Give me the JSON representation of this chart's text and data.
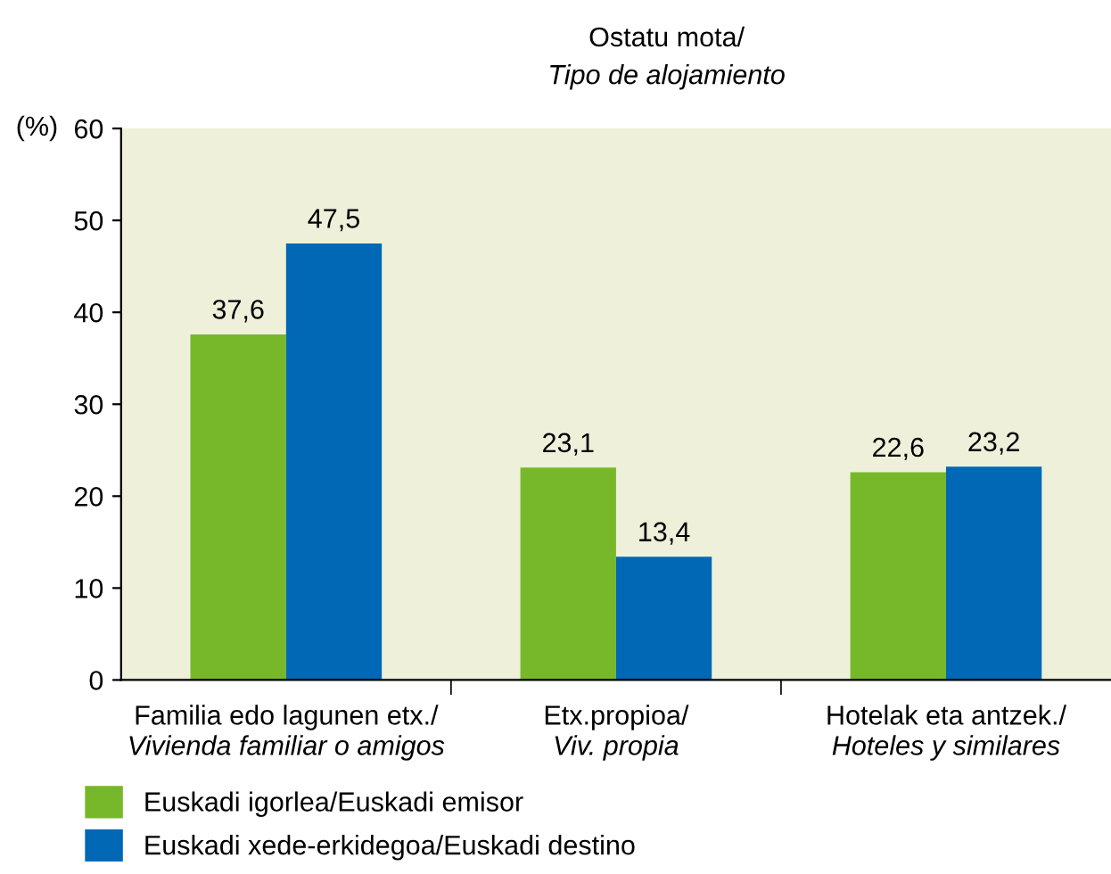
{
  "chart_data": {
    "type": "bar",
    "title": "Ostatu mota/\nTipo de alojamiento",
    "ylabel": "(%)",
    "categories": [
      "Familia edo lagunen etx./\nVivienda familiar o amigos",
      "Etx.propioa/\nViv. propia",
      "Hotelak eta antzek./\nHoteles y similares"
    ],
    "series": [
      {
        "name": "Euskadi igorlea/Euskadi emisor",
        "color": "#77b82a",
        "values": [
          37.6,
          23.1,
          22.6
        ],
        "value_labels": [
          "37,6",
          "23,1",
          "22,6"
        ]
      },
      {
        "name": "Euskadi xede-erkidegoa/Euskadi destino",
        "color": "#0068b4",
        "values": [
          47.5,
          13.4,
          23.2
        ],
        "value_labels": [
          "47,5",
          "13,4",
          "23,2"
        ]
      }
    ],
    "ylim": [
      0,
      60
    ],
    "yticks": [
      0,
      10,
      20,
      30,
      40,
      50,
      60
    ],
    "grid": false,
    "legend": "bottom left"
  }
}
